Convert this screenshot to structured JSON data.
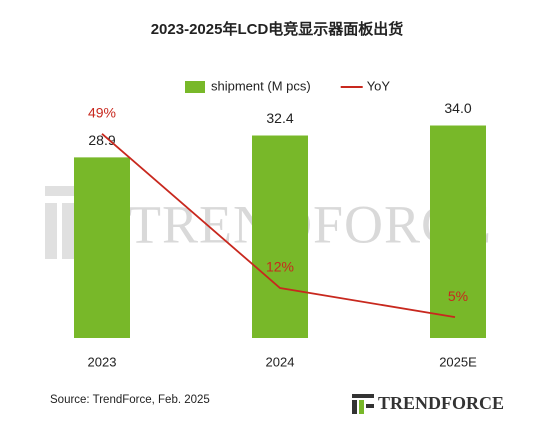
{
  "chart_data": {
    "type": "bar_line",
    "title": "2023-2025年LCD电竞显示器面板出货",
    "categories": [
      "2023",
      "2024",
      "2025E"
    ],
    "series": [
      {
        "name": "shipment (M pcs)",
        "type": "bar",
        "color": "#78b829",
        "values": [
          28.9,
          32.4,
          34.0
        ],
        "value_labels": [
          "28.9",
          "32.4",
          "34.0"
        ]
      },
      {
        "name": "YoY",
        "type": "line",
        "color": "#c8281e",
        "axis": "y2",
        "values": [
          49,
          12,
          5
        ],
        "value_labels": [
          "49%",
          "12%",
          "5%"
        ]
      }
    ],
    "ylim": [
      0,
      40
    ],
    "y2lim": [
      0,
      60
    ],
    "legend": "top",
    "source": "Source: TrendForce, Feb. 2025",
    "watermark": "TRENDFORCE",
    "logo": "TRENDFORCE"
  }
}
